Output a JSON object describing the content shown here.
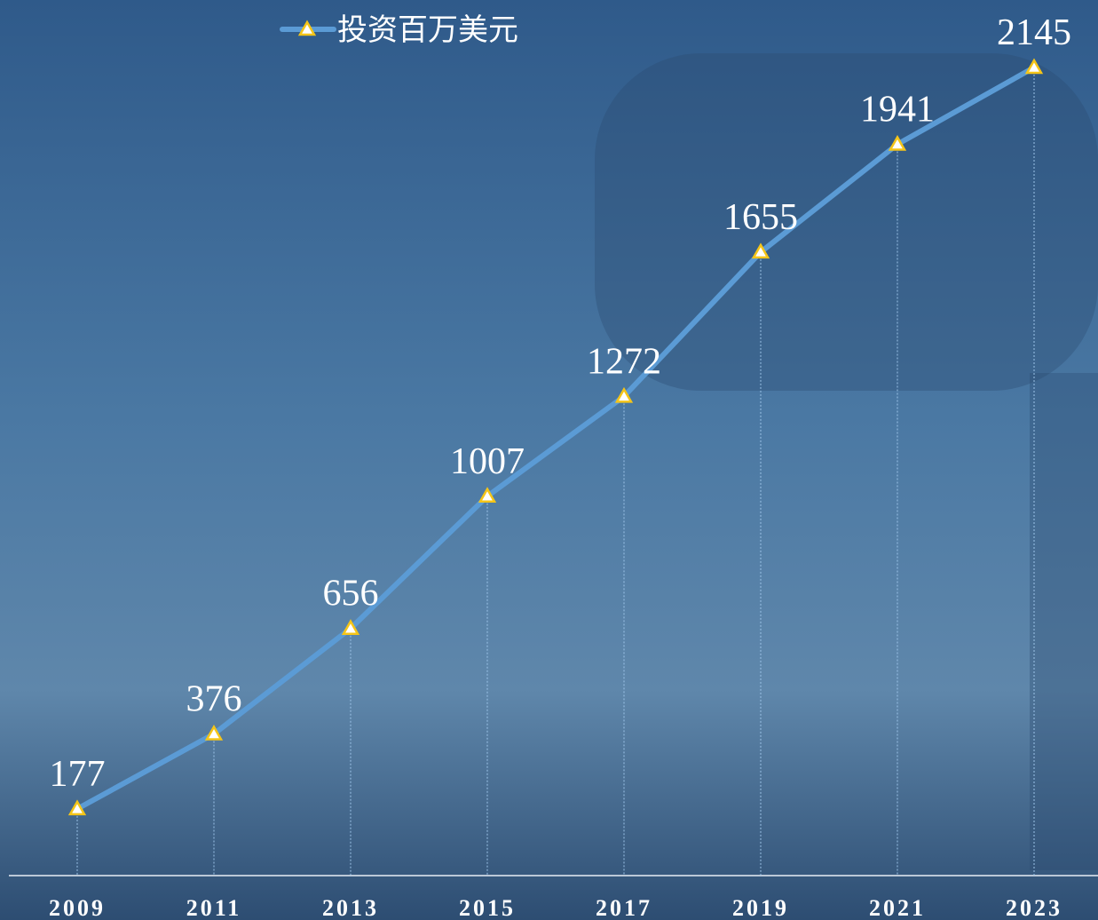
{
  "chart_data": {
    "type": "line",
    "categories": [
      "2009",
      "2011",
      "2013",
      "2015",
      "2017",
      "2019",
      "2021",
      "2023"
    ],
    "series": [
      {
        "name": "投资百万美元",
        "color": "#5b9bd5",
        "values": [
          177,
          376,
          656,
          1007,
          1272,
          1655,
          1941,
          2145
        ]
      }
    ],
    "marker": "triangle",
    "marker_color": "#f5c518"
  }
}
